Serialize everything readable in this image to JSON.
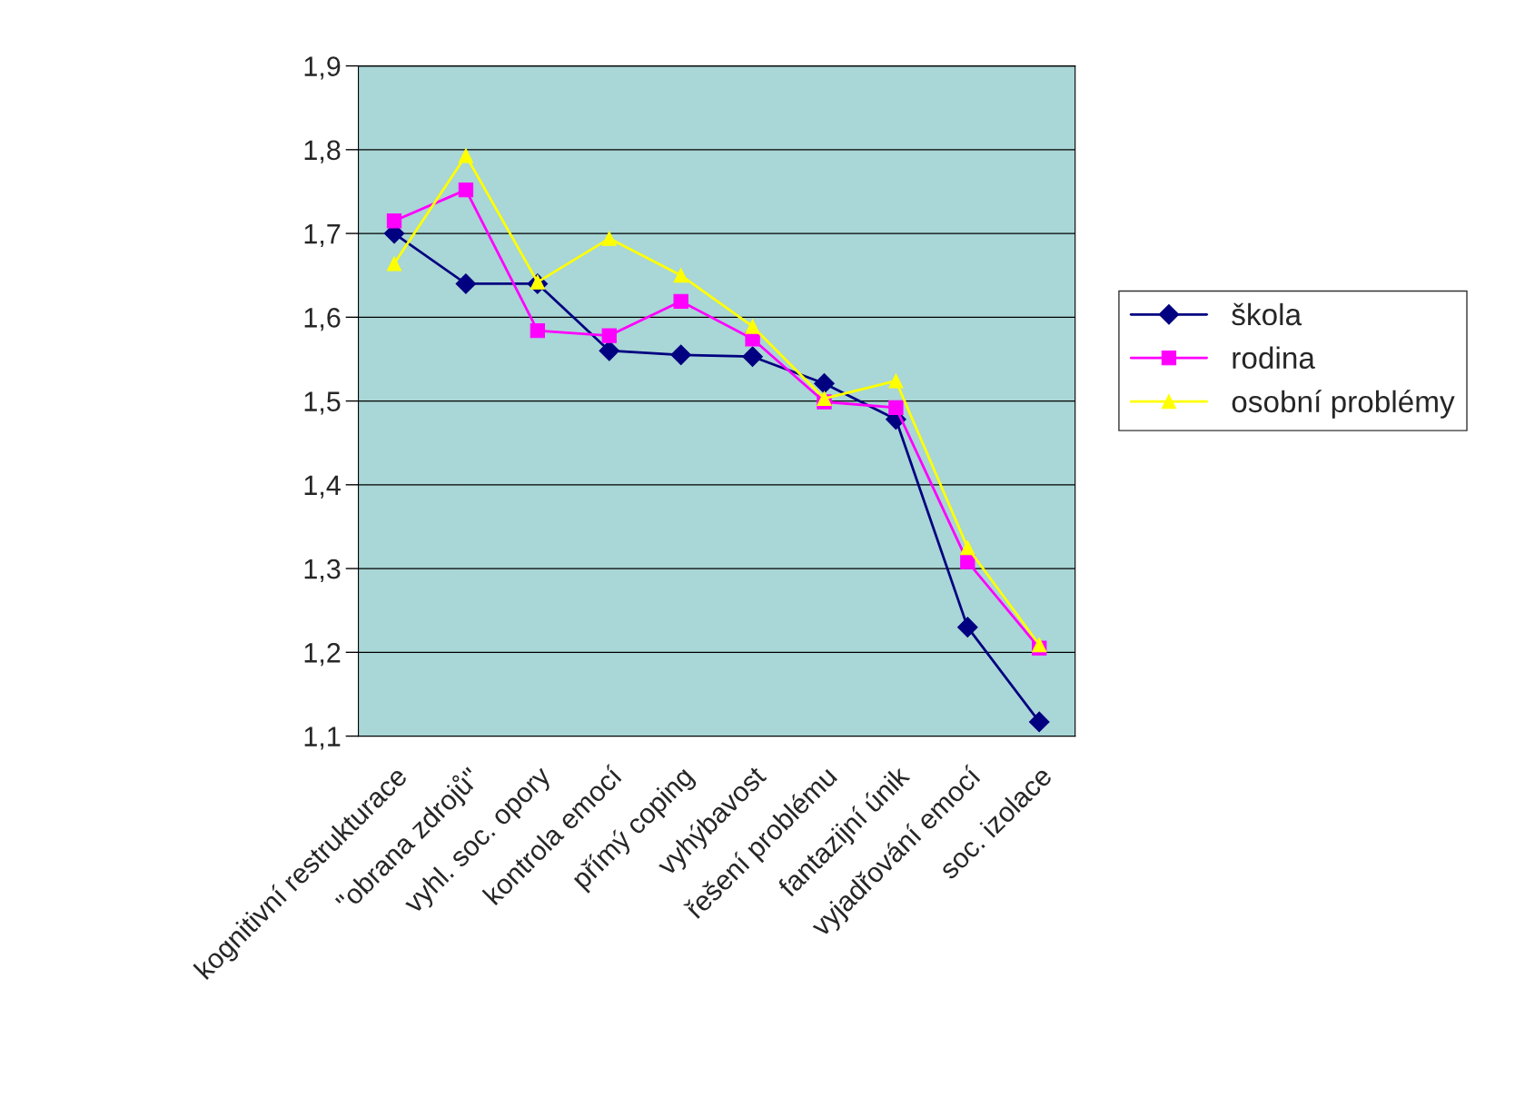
{
  "chart_data": {
    "type": "line",
    "categories": [
      "kognitivní restrukturace",
      "\"obrana zdrojů\"",
      "vyhl. soc. opory",
      "kontrola emocí",
      "přímý coping",
      "vyhýbavost",
      "řešení problému",
      "fantazijní únik",
      "vyjadřování emocí",
      "soc. izolace"
    ],
    "series": [
      {
        "name": "škola",
        "color": "#000080",
        "marker": "diamond",
        "values": [
          1.7,
          1.64,
          1.64,
          1.56,
          1.555,
          1.553,
          1.521,
          1.478,
          1.23,
          1.117
        ]
      },
      {
        "name": "rodina",
        "color": "#ff00ff",
        "marker": "square",
        "values": [
          1.715,
          1.752,
          1.584,
          1.578,
          1.619,
          1.574,
          1.499,
          1.492,
          1.308,
          1.205
        ]
      },
      {
        "name": "osobní problémy",
        "color": "#ffff00",
        "marker": "triangle",
        "values": [
          1.664,
          1.793,
          1.642,
          1.694,
          1.65,
          1.589,
          1.503,
          1.524,
          1.325,
          1.209
        ]
      }
    ],
    "ylim": [
      1.1,
      1.9
    ],
    "yticks": [
      {
        "value": 1.1,
        "label": "1,1"
      },
      {
        "value": 1.2,
        "label": "1,2"
      },
      {
        "value": 1.3,
        "label": "1,3"
      },
      {
        "value": 1.4,
        "label": "1,4"
      },
      {
        "value": 1.5,
        "label": "1,5"
      },
      {
        "value": 1.6,
        "label": "1,6"
      },
      {
        "value": 1.7,
        "label": "1,7"
      },
      {
        "value": 1.8,
        "label": "1,8"
      },
      {
        "value": 1.9,
        "label": "1,9"
      }
    ],
    "grid": "y",
    "legend": "right",
    "line_style": "solid"
  }
}
